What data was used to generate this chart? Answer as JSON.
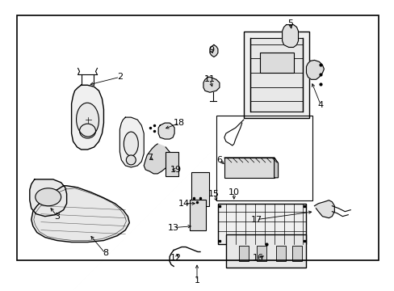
{
  "bg_color": "#ffffff",
  "line_color": "#000000",
  "gray_light": "#d0d0d0",
  "gray_mid": "#b0b0b0",
  "border": [
    20,
    18,
    450,
    305
  ],
  "label_1": [
    244,
    348,
    "1"
  ],
  "label_2": [
    148,
    95,
    "2"
  ],
  "label_3": [
    70,
    268,
    "3"
  ],
  "label_4": [
    398,
    130,
    "4"
  ],
  "label_5": [
    360,
    28,
    "5"
  ],
  "label_6": [
    272,
    198,
    "6"
  ],
  "label_7": [
    185,
    195,
    "7"
  ],
  "label_8": [
    130,
    314,
    "8"
  ],
  "label_9": [
    262,
    62,
    "9"
  ],
  "label_10": [
    290,
    238,
    "10"
  ],
  "label_11": [
    260,
    98,
    "11"
  ],
  "label_12": [
    218,
    320,
    "12"
  ],
  "label_13": [
    215,
    282,
    "13"
  ],
  "label_14": [
    228,
    252,
    "14"
  ],
  "label_15": [
    265,
    240,
    "15"
  ],
  "label_16": [
    320,
    320,
    "16"
  ],
  "label_17": [
    318,
    272,
    "17"
  ],
  "label_18": [
    222,
    152,
    "18"
  ],
  "label_19": [
    218,
    210,
    "19"
  ],
  "figsize": [
    4.89,
    3.6
  ],
  "dpi": 100
}
